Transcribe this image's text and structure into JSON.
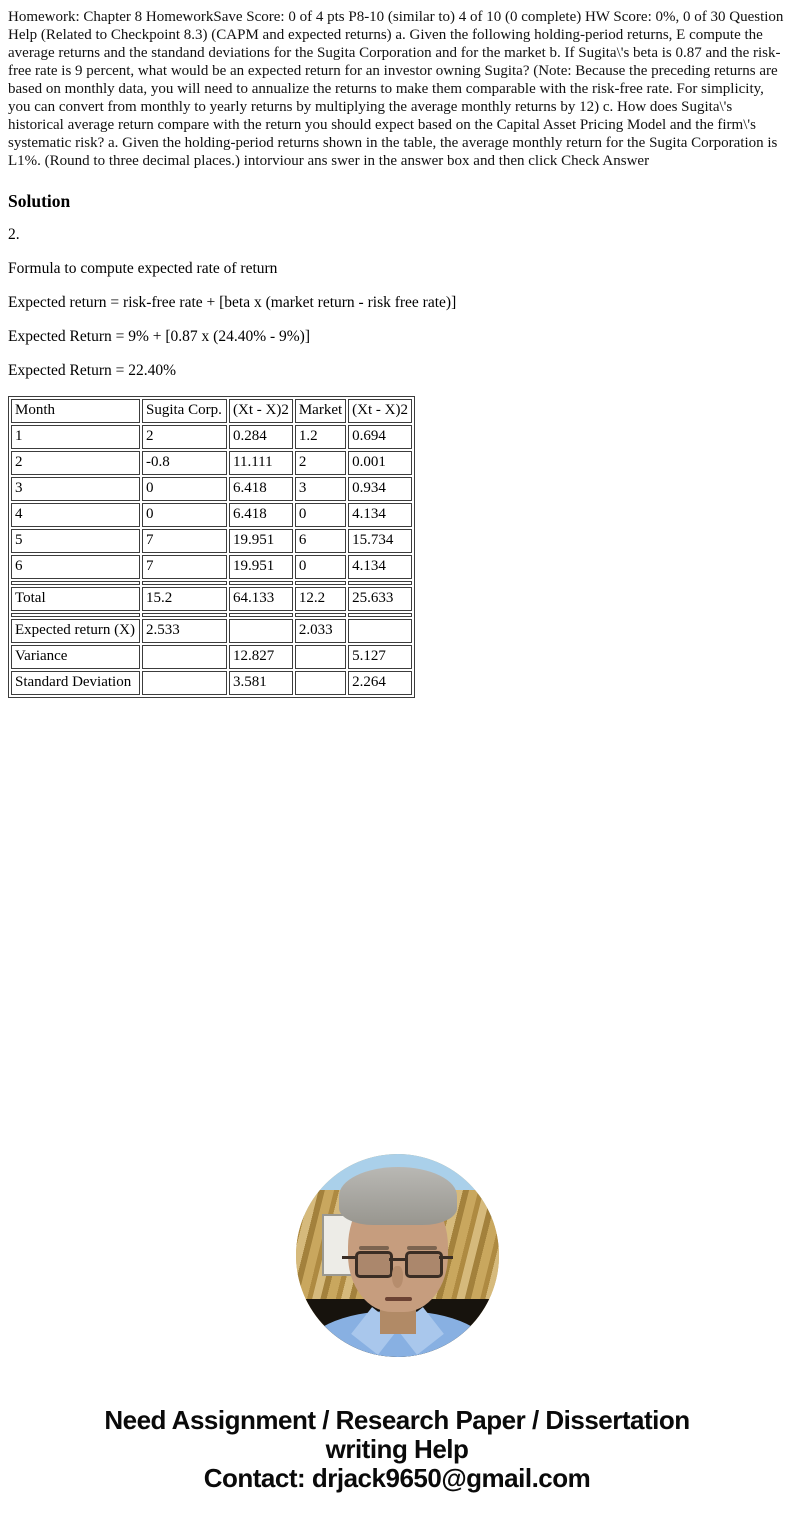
{
  "intro": {
    "text": "Homework: Chapter 8 HomeworkSave Score: 0 of 4 pts P8-10 (similar to) 4 of 10 (0 complete) HW Score: 0%, 0 of 30 Question Help (Related to Checkpoint 8.3) (CAPM and expected returns) a. Given the following holding-period returns, E compute the average returns and the standand deviations for the Sugita Corporation and for the market b. If Sugita\\'s beta is 0.87 and the risk-free rate is 9 percent, what would be an expected return for an investor owning Sugita? (Note: Because the preceding returns are based on monthly data, you will need to annualize the returns to make them comparable with the risk-free rate. For simplicity, you can convert from monthly to yearly returns by multiplying the average monthly returns by 12) c. How does Sugita\\'s historical average return compare with the return you should expect based on the Capital Asset Pricing Model and the firm\\'s systematic risk? a. Given the holding-period returns shown in the table, the average monthly return for the Sugita Corporation is L1%. (Round to three decimal places.) intorviour ans swer in the answer box and then click Check Answer"
  },
  "solution": {
    "heading": "Solution",
    "item_number": "2.",
    "lines": [
      "Formula to compute expected rate of return",
      "Expected return = risk-free rate + [beta x (market return - risk free rate)]",
      "Expected Return = 9% + [0.87 x (24.40% - 9%)]",
      "Expected Return = 22.40%"
    ]
  },
  "table": {
    "headers": [
      "Month",
      "Sugita Corp.",
      "(Xt - X)2",
      "Market",
      "(Xt - X)2"
    ],
    "rows": [
      [
        "1",
        "2",
        "0.284",
        "1.2",
        "0.694"
      ],
      [
        "2",
        "-0.8",
        "11.111",
        "2",
        "0.001"
      ],
      [
        "3",
        "0",
        "6.418",
        "3",
        "0.934"
      ],
      [
        "4",
        "0",
        "6.418",
        "0",
        "4.134"
      ],
      [
        "5",
        "7",
        "19.951",
        "6",
        "15.734"
      ],
      [
        "6",
        "7",
        "19.951",
        "0",
        "4.134"
      ]
    ],
    "total_row": [
      "Total",
      "15.2",
      "64.133",
      "12.2",
      "25.633"
    ],
    "summary_rows": [
      [
        "Expected return (X)",
        "2.533",
        "",
        "2.033",
        ""
      ],
      [
        "Variance",
        "",
        "12.827",
        "",
        "5.127"
      ],
      [
        "Standard Deviation",
        "",
        "3.581",
        "",
        "2.264"
      ]
    ]
  },
  "avatar": {
    "description": "circular photo of elderly male tutor with glasses and light blue shirt",
    "colors": {
      "sky": "#aad0ea",
      "curtain": "#c9a75e",
      "dark_band": "#17130d",
      "shirt": "#88b0e2",
      "skin": "#c69d7e",
      "hair": "#a3a29e"
    }
  },
  "footer": {
    "lines": [
      "Need Assignment / Research Paper / Dissertation",
      "writing Help",
      "Contact: drjack9650@gmail.com"
    ]
  }
}
